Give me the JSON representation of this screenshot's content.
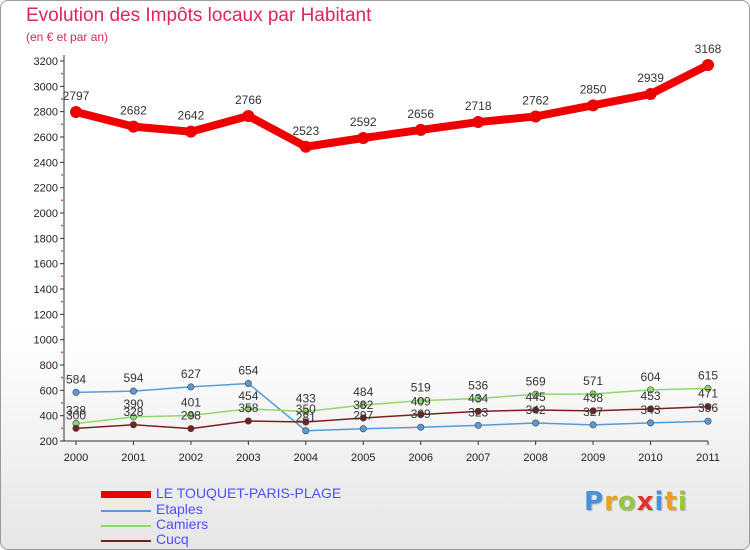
{
  "title": "Evolution des Impôts locaux par Habitant",
  "subtitle": "(en € et par an)",
  "chart_data": {
    "type": "line",
    "title": "Evolution des Impôts locaux par Habitant",
    "ylabel": "(en € et par an)",
    "xlabel": "",
    "ylim": [
      200,
      3200
    ],
    "yticks": [
      200,
      400,
      600,
      800,
      1000,
      1200,
      1400,
      1600,
      1800,
      2000,
      2200,
      2400,
      2600,
      2800,
      3000,
      3200
    ],
    "x": [
      "2000",
      "2001",
      "2002",
      "2003",
      "2004",
      "2005",
      "2006",
      "2007",
      "2008",
      "2009",
      "2010",
      "2011"
    ],
    "grid": false,
    "legend_position": "bottom-left",
    "series": [
      {
        "name": "LE TOUQUET-PARIS-PLAGE",
        "color": "#ee0000",
        "values": [
          2797,
          2682,
          2642,
          2766,
          2523,
          2592,
          2656,
          2718,
          2762,
          2850,
          2939,
          3168
        ]
      },
      {
        "name": "Etaples",
        "color": "#5b9bd5",
        "values": [
          584,
          594,
          627,
          654,
          281,
          297,
          309,
          323,
          342,
          327,
          343,
          356
        ]
      },
      {
        "name": "Camiers",
        "color": "#8fd96a",
        "values": [
          338,
          390,
          401,
          454,
          433,
          484,
          519,
          536,
          569,
          571,
          604,
          615
        ]
      },
      {
        "name": "Cucq",
        "color": "#7b2020",
        "values": [
          300,
          328,
          298,
          358,
          350,
          382,
          409,
          434,
          445,
          438,
          453,
          471
        ]
      }
    ]
  },
  "legend": {
    "items": [
      {
        "label": "LE TOUQUET-PARIS-PLAGE",
        "color": "#ee0000"
      },
      {
        "label": "Etaples",
        "color": "#5b9bd5"
      },
      {
        "label": "Camiers",
        "color": "#8fd96a"
      },
      {
        "label": "Cucq",
        "color": "#7b2020"
      }
    ]
  },
  "brand": {
    "letters": [
      "P",
      "r",
      "o",
      "x",
      "i",
      "t",
      "i"
    ],
    "colors": [
      "#4a90d9",
      "#e8a21c",
      "#9bc53d",
      "#e2342b",
      "#4a90d9",
      "#e8a21c",
      "#9bc53d"
    ]
  }
}
